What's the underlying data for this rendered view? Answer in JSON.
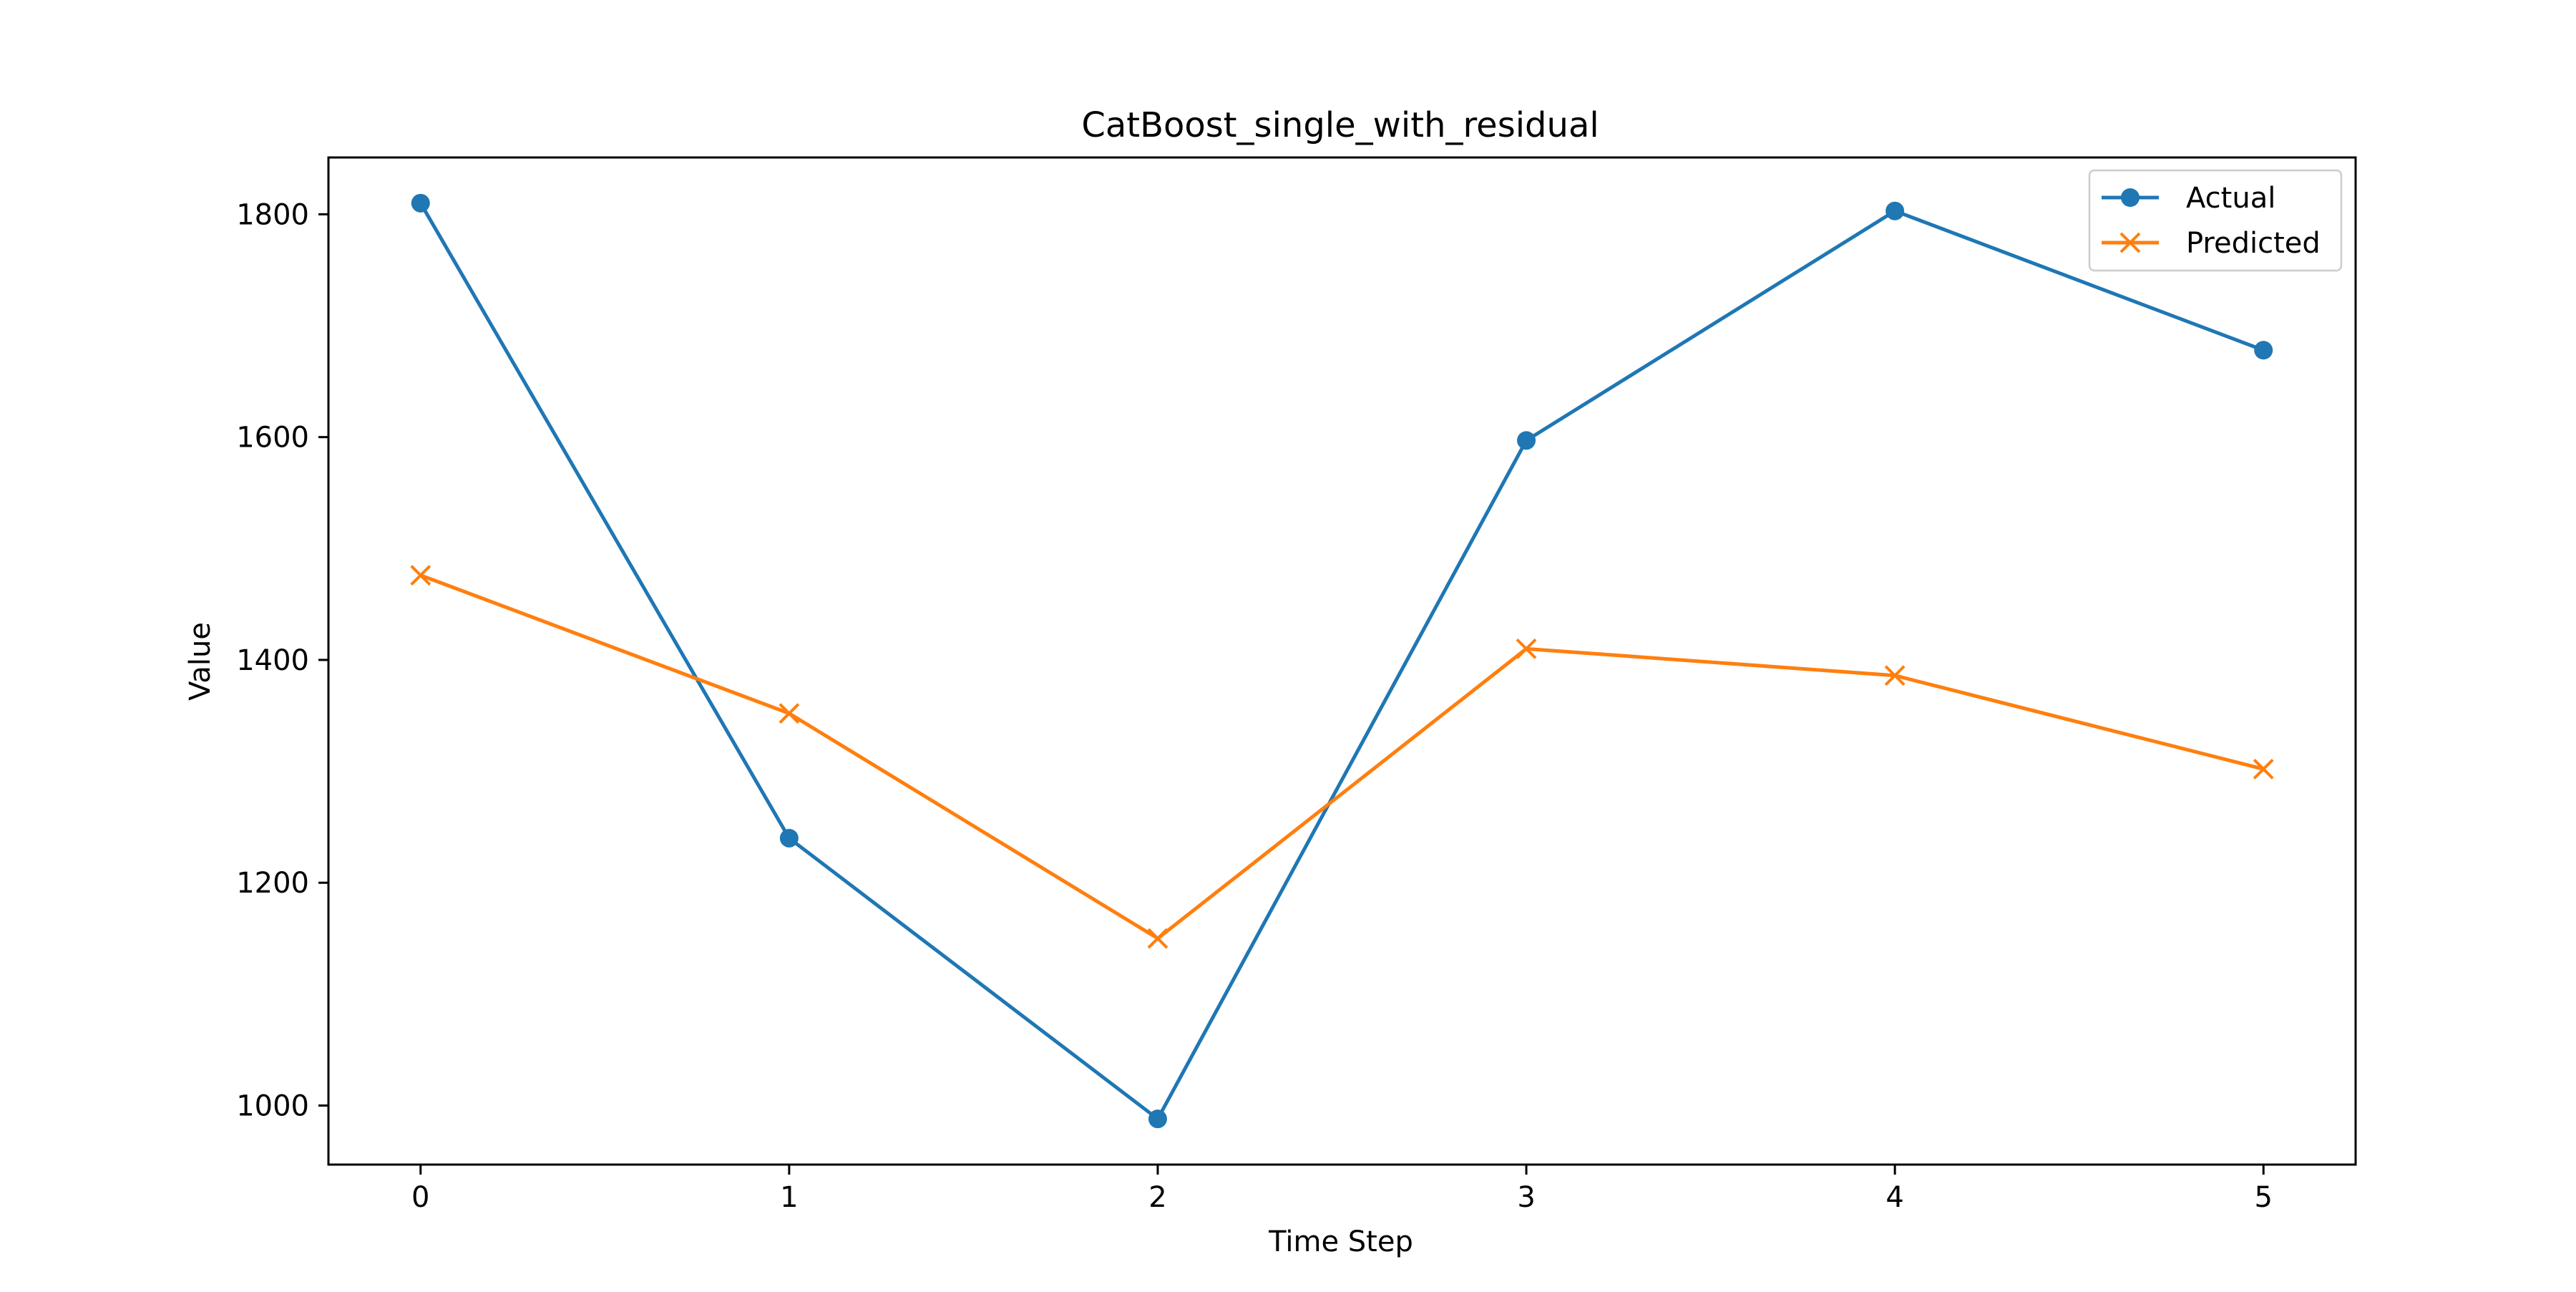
{
  "chart_data": {
    "type": "line",
    "title": "CatBoost_single_with_residual",
    "xlabel": "Time Step",
    "ylabel": "Value",
    "x": [
      0,
      1,
      2,
      3,
      4,
      5
    ],
    "xticks": [
      "0",
      "1",
      "2",
      "3",
      "4",
      "5"
    ],
    "yticks": [
      "1000",
      "1200",
      "1400",
      "1600",
      "1800"
    ],
    "xlim": [
      -0.25,
      5.25
    ],
    "ylim": [
      947,
      1851
    ],
    "grid": false,
    "legend": "top-right",
    "series": [
      {
        "name": "Actual",
        "marker": "circle",
        "color": "#1f77b4",
        "values": [
          1810,
          1240,
          988,
          1597,
          1803,
          1678
        ]
      },
      {
        "name": "Predicted",
        "marker": "x",
        "color": "#ff7f0e",
        "values": [
          1476,
          1352,
          1150,
          1410,
          1386,
          1302
        ]
      }
    ]
  }
}
